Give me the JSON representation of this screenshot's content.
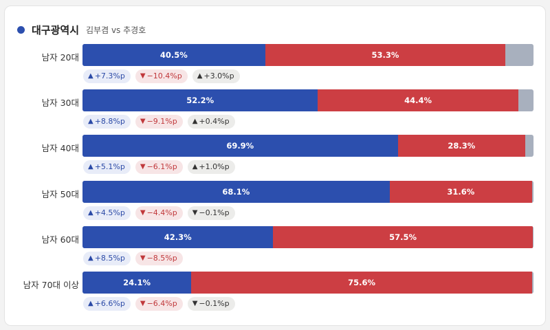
{
  "header": {
    "region": "대구광역시",
    "matchup": "김부겸 vs 추경호"
  },
  "colors": {
    "blue": "#2c4fae",
    "red": "#cc3e43",
    "other": "#a8b0be"
  },
  "chart_data": {
    "type": "bar",
    "stacked": true,
    "orientation": "horizontal",
    "categories": [
      "남자 20대",
      "남자 30대",
      "남자 40대",
      "남자 50대",
      "남자 60대",
      "남자 70대 이상"
    ],
    "series": [
      {
        "color": "#2c4fae",
        "values": [
          40.5,
          52.2,
          69.9,
          68.1,
          42.3,
          24.1
        ]
      },
      {
        "color": "#cc3e43",
        "values": [
          53.3,
          44.4,
          28.3,
          31.6,
          57.5,
          75.6
        ]
      }
    ],
    "value_labels": [
      [
        "40.5%",
        "53.3%"
      ],
      [
        "52.2%",
        "44.4%"
      ],
      [
        "69.9%",
        "28.3%"
      ],
      [
        "68.1%",
        "31.6%"
      ],
      [
        "42.3%",
        "57.5%"
      ],
      [
        "24.1%",
        "75.6%"
      ]
    ],
    "changes": [
      [
        {
          "dir": "up",
          "tone": "blue",
          "text": "+7.3%p"
        },
        {
          "dir": "down",
          "tone": "red",
          "text": "−10.4%p"
        },
        {
          "dir": "up",
          "tone": "gray",
          "text": "+3.0%p"
        }
      ],
      [
        {
          "dir": "up",
          "tone": "blue",
          "text": "+8.8%p"
        },
        {
          "dir": "down",
          "tone": "red",
          "text": "−9.1%p"
        },
        {
          "dir": "up",
          "tone": "gray",
          "text": "+0.4%p"
        }
      ],
      [
        {
          "dir": "up",
          "tone": "blue",
          "text": "+5.1%p"
        },
        {
          "dir": "down",
          "tone": "red",
          "text": "−6.1%p"
        },
        {
          "dir": "up",
          "tone": "gray",
          "text": "+1.0%p"
        }
      ],
      [
        {
          "dir": "up",
          "tone": "blue",
          "text": "+4.5%p"
        },
        {
          "dir": "down",
          "tone": "red",
          "text": "−4.4%p"
        },
        {
          "dir": "down",
          "tone": "gray",
          "text": "−0.1%p"
        }
      ],
      [
        {
          "dir": "up",
          "tone": "blue",
          "text": "+8.5%p"
        },
        {
          "dir": "down",
          "tone": "red",
          "text": "−8.5%p"
        }
      ],
      [
        {
          "dir": "up",
          "tone": "blue",
          "text": "+6.6%p"
        },
        {
          "dir": "down",
          "tone": "red",
          "text": "−6.4%p"
        },
        {
          "dir": "down",
          "tone": "gray",
          "text": "−0.1%p"
        }
      ]
    ],
    "xlim": [
      0,
      100
    ],
    "grid": false
  }
}
